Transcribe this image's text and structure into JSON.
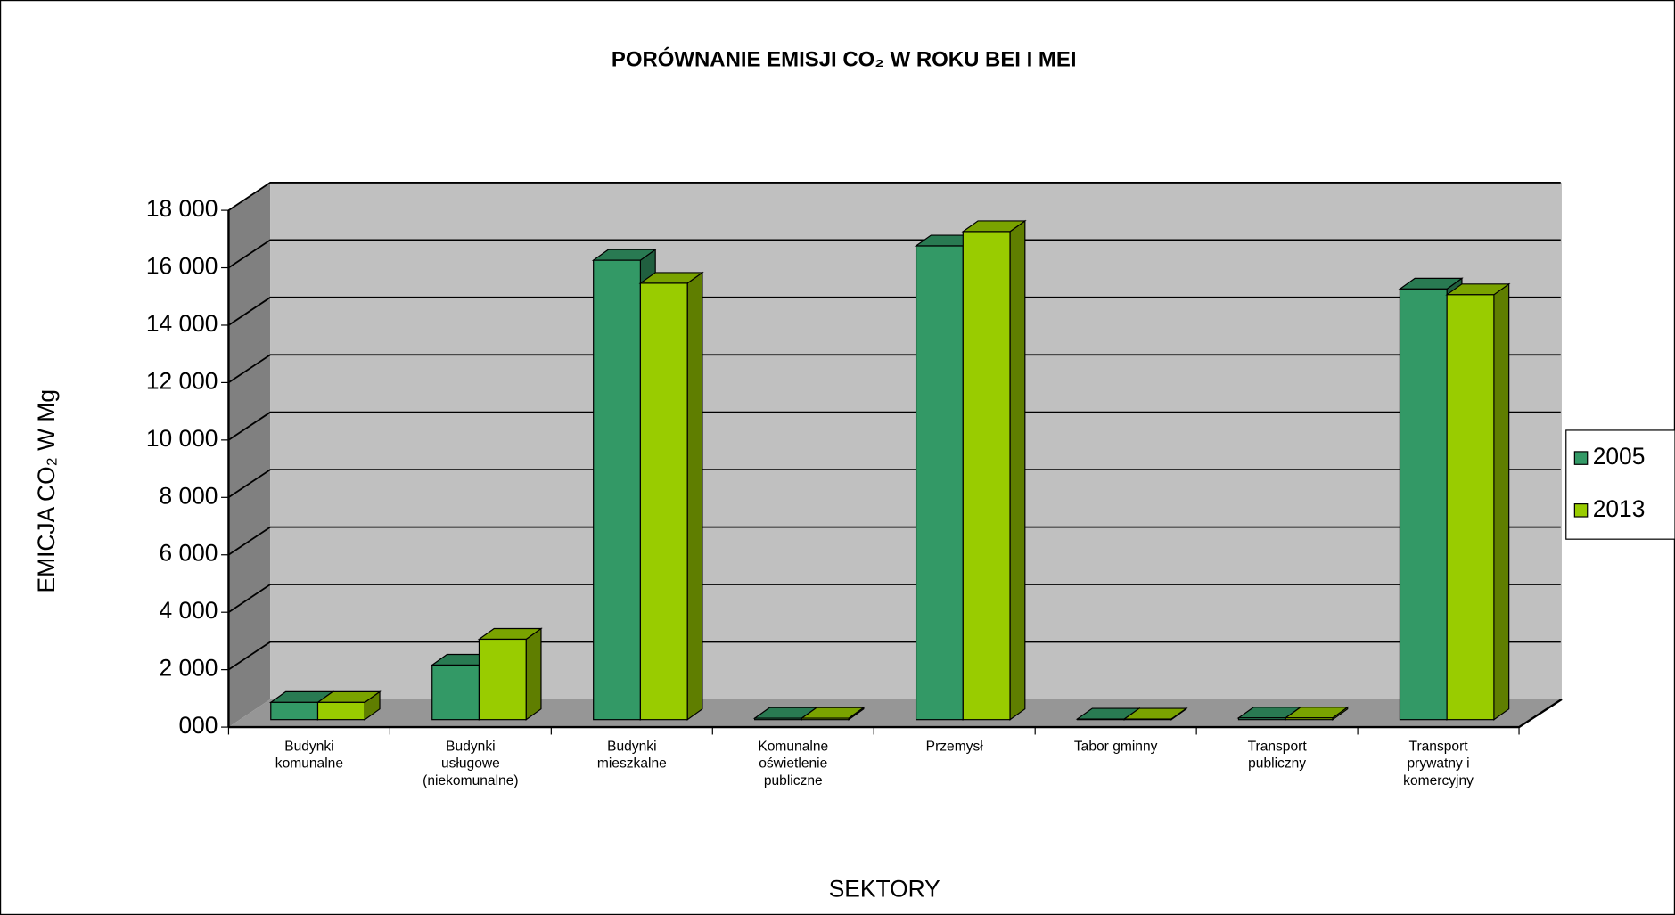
{
  "chart_data": {
    "type": "bar3d",
    "title": "PORÓWNANIE EMISJI CO₂ W ROKU BEI I MEI",
    "y_label": "EMICJA CO₂ W Mg",
    "x_label": "SEKTORY",
    "categories": [
      "Budynki komunalne",
      "Budynki usługowe (niekomunalne)",
      "Budynki mieszkalne",
      "Komunalne oświetlenie publiczne",
      "Przemysł",
      "Tabor gminny",
      "Transport publiczny",
      "Transport prywatny i komercyjny"
    ],
    "series": [
      {
        "name": "2005",
        "color": "#339966",
        "values": [
          600,
          1900,
          16000,
          50,
          16500,
          20,
          60,
          15000
        ]
      },
      {
        "name": "2013",
        "color": "#99cc00",
        "values": [
          600,
          2800,
          15200,
          50,
          17000,
          20,
          60,
          14800
        ]
      }
    ],
    "ylim": [
      0,
      18000
    ],
    "yticks": [
      {
        "value": 0,
        "label": "000"
      },
      {
        "value": 2000,
        "label": "2 000"
      },
      {
        "value": 4000,
        "label": "4 000"
      },
      {
        "value": 6000,
        "label": "6 000"
      },
      {
        "value": 8000,
        "label": "8 000"
      },
      {
        "value": 10000,
        "label": "10 000"
      },
      {
        "value": 12000,
        "label": "12 000"
      },
      {
        "value": 14000,
        "label": "14 000"
      },
      {
        "value": 16000,
        "label": "16 000"
      },
      {
        "value": 18000,
        "label": "18 000"
      }
    ],
    "grid": true,
    "legend": "right"
  }
}
